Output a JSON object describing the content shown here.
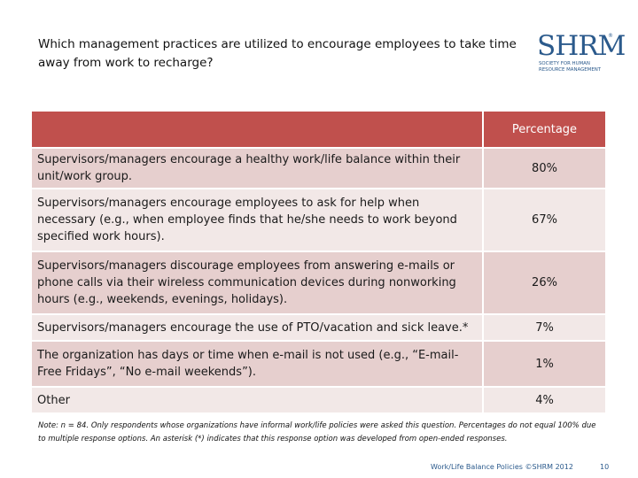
{
  "slide": {
    "title": "Which management practices are utilized to encourage employees to take time away from work to recharge?"
  },
  "logo": {
    "word": "SHRM",
    "reg_mark": "®",
    "subtitle_line1": "Society for Human",
    "subtitle_line2": "Resource Management",
    "color": "#2b5a8c"
  },
  "table": {
    "header_blank": "",
    "header_value": "Percentage",
    "header_color": "#c0504d",
    "rows": [
      {
        "label": "Supervisors/managers encourage a healthy work/life balance within their unit/work group.",
        "value": "80%"
      },
      {
        "label": "Supervisors/managers encourage employees to ask for help when necessary (e.g., when employee finds that he/she needs to work beyond specified work hours).",
        "value": "67%"
      },
      {
        "label": "Supervisors/managers discourage employees from answering e-mails or phone calls via their wireless communication devices during nonworking hours (e.g., weekends, evenings, holidays).",
        "value": "26%"
      },
      {
        "label": "Supervisors/managers encourage the use of PTO/vacation and sick leave.*",
        "value": "7%"
      },
      {
        "label": "The organization has days or time when e-mail is not used (e.g., “E-mail-Free Fridays”, “No e-mail weekends”).",
        "value": "1%"
      },
      {
        "label": "Other",
        "value": "4%"
      }
    ]
  },
  "note": "Note: n = 84. Only respondents whose organizations have informal work/life policies were asked this question. Percentages do not equal 100% due to multiple response options. An asterisk (*) indicates that this response option was developed from open-ended responses.",
  "footer": {
    "text": "Work/Life Balance Policies ©SHRM 2012",
    "page": "10"
  }
}
